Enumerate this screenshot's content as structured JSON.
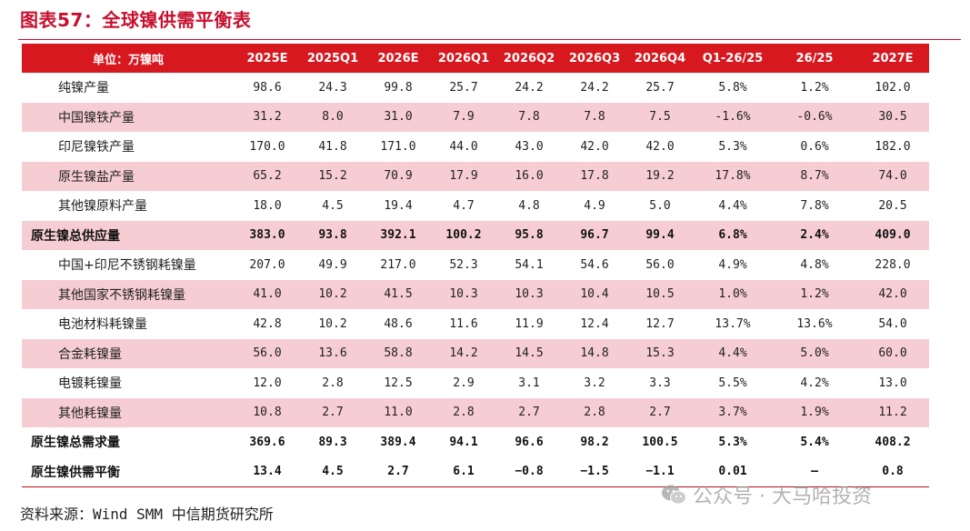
{
  "title": "图表57：全球镍供需平衡表",
  "header": [
    "单位：万镍吨",
    "2025E",
    "2025Q1",
    "2026E",
    "2026Q1",
    "2026Q2",
    "2026Q3",
    "2026Q4",
    "Q1-26/25",
    "26/25",
    "2027E"
  ],
  "rows": [
    {
      "label": "纯镍产量",
      "values": [
        "98.6",
        "24.3",
        "99.8",
        "25.7",
        "24.2",
        "24.2",
        "25.7",
        "5.8%",
        "1.2%",
        "102.0"
      ]
    },
    {
      "label": "中国镍铁产量",
      "values": [
        "31.2",
        "8.0",
        "31.0",
        "7.9",
        "7.8",
        "7.8",
        "7.5",
        "-1.6%",
        "-0.6%",
        "30.5"
      ]
    },
    {
      "label": "印尼镍铁产量",
      "values": [
        "170.0",
        "41.8",
        "171.0",
        "44.0",
        "43.0",
        "42.0",
        "42.0",
        "5.3%",
        "0.6%",
        "182.0"
      ]
    },
    {
      "label": "原生镍盐产量",
      "values": [
        "65.2",
        "15.2",
        "70.9",
        "17.9",
        "16.0",
        "17.8",
        "19.2",
        "17.8%",
        "8.7%",
        "74.0"
      ]
    },
    {
      "label": "其他镍原料产量",
      "values": [
        "18.0",
        "4.5",
        "19.4",
        "4.7",
        "4.8",
        "4.9",
        "5.0",
        "4.4%",
        "7.8%",
        "20.5"
      ]
    },
    {
      "label": "原生镍总供应量",
      "values": [
        "383.0",
        "93.8",
        "392.1",
        "100.2",
        "95.8",
        "96.7",
        "99.4",
        "6.8%",
        "2.4%",
        "409.0"
      ]
    },
    {
      "label": "中国+印尼不锈钢耗镍量",
      "values": [
        "207.0",
        "49.9",
        "217.0",
        "52.3",
        "54.1",
        "54.6",
        "56.0",
        "4.9%",
        "4.8%",
        "228.0"
      ]
    },
    {
      "label": "其他国家不锈钢耗镍量",
      "values": [
        "41.0",
        "10.2",
        "41.5",
        "10.3",
        "10.3",
        "10.4",
        "10.5",
        "1.0%",
        "1.2%",
        "42.0"
      ]
    },
    {
      "label": "电池材料耗镍量",
      "values": [
        "42.8",
        "10.2",
        "48.6",
        "11.6",
        "11.9",
        "12.4",
        "12.7",
        "13.7%",
        "13.6%",
        "54.0"
      ]
    },
    {
      "label": "合金耗镍量",
      "values": [
        "56.0",
        "13.6",
        "58.8",
        "14.2",
        "14.5",
        "14.8",
        "15.3",
        "4.4%",
        "5.0%",
        "60.0"
      ]
    },
    {
      "label": "电镀耗镍量",
      "values": [
        "12.0",
        "2.8",
        "12.5",
        "2.9",
        "3.1",
        "3.2",
        "3.3",
        "5.5%",
        "4.2%",
        "13.0"
      ]
    },
    {
      "label": "其他耗镍量",
      "values": [
        "10.8",
        "2.7",
        "11.0",
        "2.8",
        "2.7",
        "2.8",
        "2.7",
        "3.7%",
        "1.9%",
        "11.2"
      ]
    },
    {
      "label": "原生镍总需求量",
      "values": [
        "369.6",
        "89.3",
        "389.4",
        "94.1",
        "96.6",
        "98.2",
        "100.5",
        "5.3%",
        "5.4%",
        "408.2"
      ]
    },
    {
      "label": "原生镍供需平衡",
      "values": [
        "13.4",
        "4.5",
        "2.7",
        "6.1",
        "−0.8",
        "−1.5",
        "−1.1",
        "0.01",
        "–",
        "0.8"
      ]
    }
  ],
  "source": "资料来源：Wind SMM 中信期货研究所",
  "watermark": "公众号 · 大马哈投资",
  "colors": {
    "accent": "#d7181f",
    "band": "#f6cdd2"
  }
}
